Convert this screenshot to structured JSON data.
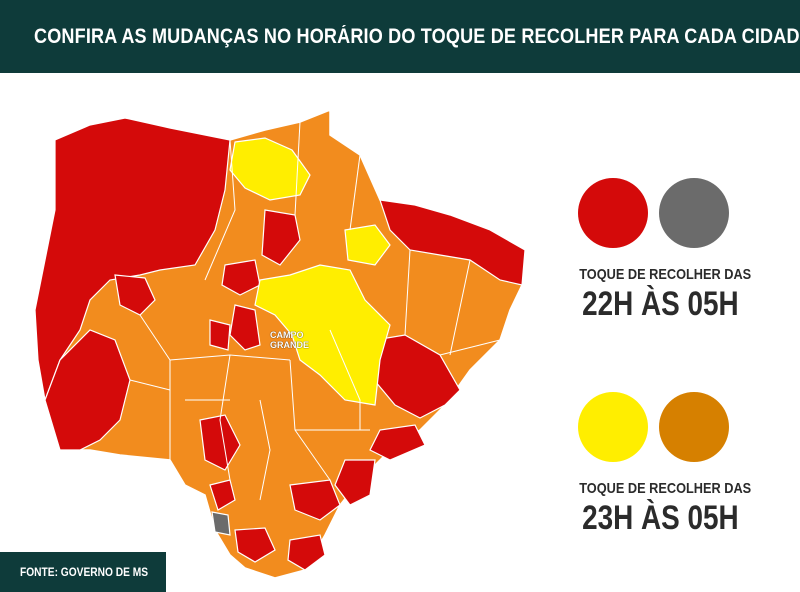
{
  "header": {
    "title": "CONFIRA AS MUDANÇAS NO HORÁRIO DO TOQUE DE RECOLHER PARA CADA CIDADE"
  },
  "map": {
    "city_label": "CAMPO GRANDE"
  },
  "legend": [
    {
      "caption": "TOQUE DE RECOLHER DAS",
      "hours": "22H ÀS 05H",
      "colors": [
        "#d40a0a",
        "#6b6b6b"
      ]
    },
    {
      "caption": "TOQUE DE RECOLHER DAS",
      "hours": "23H ÀS 05H",
      "colors": [
        "#ffee00",
        "#d68000"
      ]
    }
  ],
  "map_colors": {
    "red": "#d40a0a",
    "orange": "#f28c1e",
    "yellow": "#ffee00",
    "gray": "#6b6b6b",
    "border": "#ffffff"
  },
  "source": {
    "text": "FONTE: GOVERNO DE MS"
  }
}
